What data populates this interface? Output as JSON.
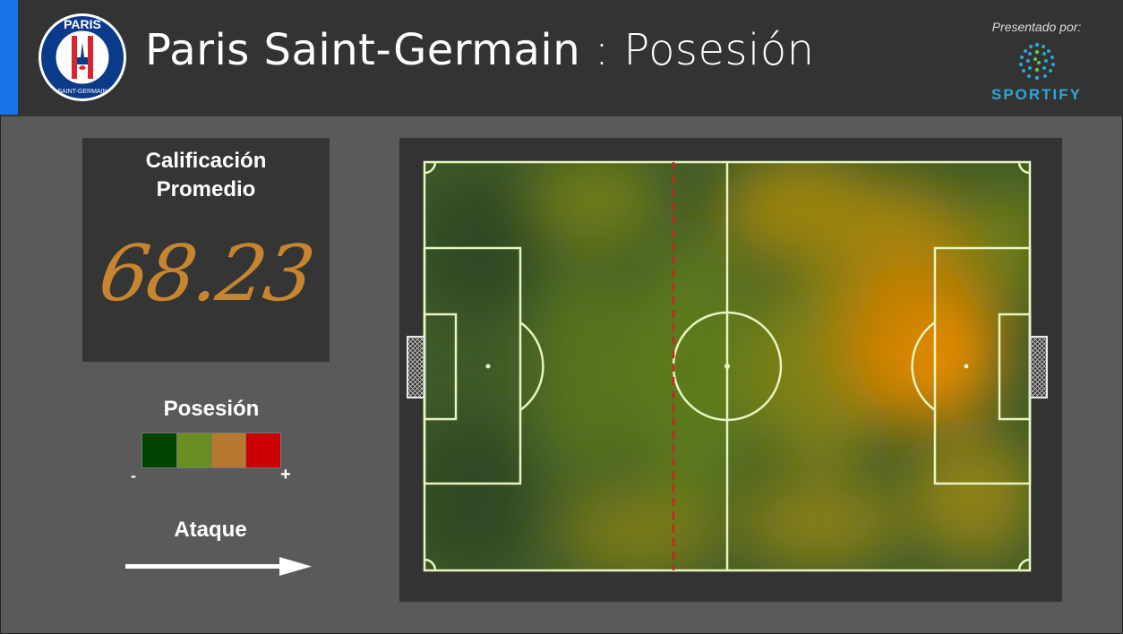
{
  "header": {
    "team": "Paris Saint-Germain",
    "separator": ":",
    "metric": "Posesión",
    "logo": {
      "icon": "psg-crest-icon",
      "top_text": "PARIS",
      "bottom_text": "SAINT-GERMAIN"
    },
    "sponsor": {
      "label": "Presentado por:",
      "name": "SPORTIFY",
      "icon": "sportify-globe-icon"
    }
  },
  "rating": {
    "title_line1": "Calificación",
    "title_line2": "Promedio",
    "value": "68.23"
  },
  "legend": {
    "title": "Posesión",
    "min_label": "-",
    "max_label": "+",
    "colors": [
      "#004400",
      "#6b8e23",
      "#b8782f",
      "#cc0000"
    ]
  },
  "attack": {
    "label": "Ataque",
    "direction": "right",
    "icon": "arrow-right-icon"
  },
  "colors": {
    "header_bg": "#333333",
    "accent": "#1a73e8",
    "rating_value": "#c8852f",
    "pitch_lines": "#e8f5c0",
    "halfway_marker": "#cc2222"
  },
  "pitch": {
    "heat_hotspot": "attacking-penalty-area",
    "halfway_marker": "dashed-line"
  }
}
